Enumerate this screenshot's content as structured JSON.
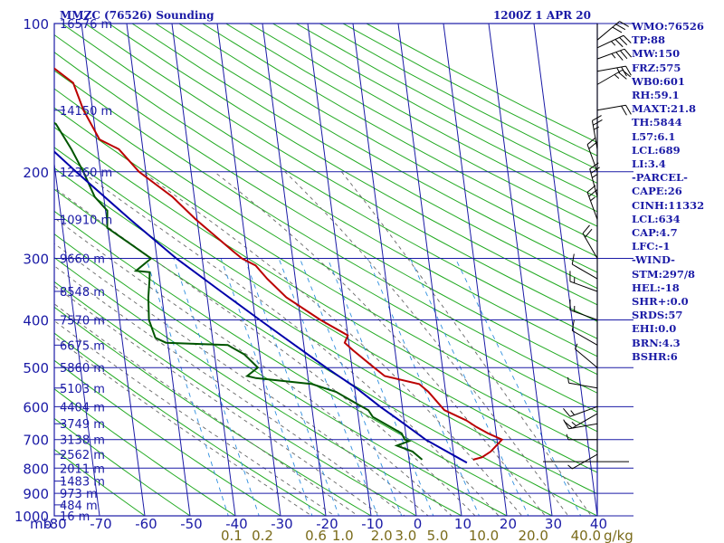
{
  "header": {
    "title": "MMZC (76526) Sounding",
    "time": "1200Z  1 APR 20"
  },
  "indices": [
    "WMO:76526",
    "TP:88",
    "MW:150",
    "FRZ:575",
    "WB0:601",
    "RH:59.1",
    "MAXT:21.8",
    "TH:5844",
    "L57:6.1",
    "LCL:689",
    "LI:3.4",
    "-PARCEL-",
    "CAPE:26",
    "CINH:11332",
    "LCL:634",
    "CAP:4.7",
    "LFC:-1",
    "-WIND-",
    "STM:297/8",
    "HEL:-18",
    "SHR+:0.0",
    "SRDS:57",
    "EHI:0.0",
    "BRN:4.3",
    "BSHR:6"
  ],
  "colors": {
    "frame": "#1a1aa6",
    "dry_adiabat": "#22aa22",
    "moist_adiabat": "#666666",
    "mixing_ratio": "#2f8fdf",
    "temperature": "#bb0000",
    "dewpoint": "#005500",
    "parcel": "#0000aa",
    "wind_barb": "#000000",
    "mixing_ratio_label": "#7a6b1a"
  },
  "chart_data": {
    "type": "line",
    "title": "MMZC (76526) Sounding",
    "xlabel": "",
    "ylabel": "mb",
    "grid": true,
    "xlim": [
      -80,
      40
    ],
    "ylim": [
      1000,
      100
    ],
    "pressure_ticks": [
      100,
      200,
      300,
      400,
      500,
      600,
      700,
      800,
      900,
      1000
    ],
    "pressure_tick_labels": [
      "100",
      "200",
      "300",
      "400",
      "500",
      "600",
      "700",
      "800",
      "900",
      "1000"
    ],
    "temperature_ticks": [
      -80,
      -70,
      -60,
      -50,
      -40,
      -30,
      -20,
      -10,
      0,
      10,
      20,
      30,
      40
    ],
    "temperature_tick_labels": [
      "-80",
      "-70",
      "-60",
      "-50",
      "-40",
      "-30",
      "-20",
      "-10",
      "0",
      "10",
      "20",
      "30",
      "40"
    ],
    "axis_unit_label": "mb",
    "height_labels": [
      {
        "p": 100,
        "label": "16576 m"
      },
      {
        "p": 150,
        "label": "14150 m"
      },
      {
        "p": 200,
        "label": "12360 m"
      },
      {
        "p": 250,
        "label": "10910 m"
      },
      {
        "p": 300,
        "label": "9660 m"
      },
      {
        "p": 350,
        "label": "8548 m"
      },
      {
        "p": 400,
        "label": "7570 m"
      },
      {
        "p": 450,
        "label": "6675 m"
      },
      {
        "p": 500,
        "label": "5860 m"
      },
      {
        "p": 550,
        "label": "5103 m"
      },
      {
        "p": 600,
        "label": "4404 m"
      },
      {
        "p": 650,
        "label": "3749 m"
      },
      {
        "p": 700,
        "label": "3138 m"
      },
      {
        "p": 750,
        "label": "2562 m"
      },
      {
        "p": 800,
        "label": "2011 m"
      },
      {
        "p": 850,
        "label": "1483 m"
      },
      {
        "p": 900,
        "label": "973 m"
      },
      {
        "p": 950,
        "label": "484 m"
      },
      {
        "p": 1000,
        "label": "16 m"
      }
    ],
    "mixing_ratio_lines": [
      0.1,
      0.2,
      0.6,
      1.0,
      2.0,
      3.0,
      5.0,
      10.0,
      20.0,
      40.0
    ],
    "mixing_ratio_labels": [
      "0.1",
      "0.2",
      "0.6",
      "1.0",
      "2.0",
      "3.0",
      "5.0",
      "10.0",
      "20.0",
      "40.0"
    ],
    "mixing_ratio_unit": "g/kg",
    "series": [
      {
        "name": "Temperature",
        "points": [
          [
            769,
            14.2
          ],
          [
            760,
            16.2
          ],
          [
            740,
            18.3
          ],
          [
            700,
            21.1
          ],
          [
            680,
            18.2
          ],
          [
            660,
            15.8
          ],
          [
            640,
            13.8
          ],
          [
            610,
            9.2
          ],
          [
            560,
            6.2
          ],
          [
            540,
            4.4
          ],
          [
            520,
            -3.0
          ],
          [
            500,
            -5.1
          ],
          [
            460,
            -9.4
          ],
          [
            445,
            -10.9
          ],
          [
            430,
            -10.0
          ],
          [
            400,
            -15.6
          ],
          [
            360,
            -22.5
          ],
          [
            330,
            -26.2
          ],
          [
            310,
            -28.4
          ],
          [
            300,
            -31.2
          ],
          [
            290,
            -33.0
          ],
          [
            250,
            -40.3
          ],
          [
            225,
            -44.8
          ],
          [
            200,
            -51.5
          ],
          [
            180,
            -55.3
          ],
          [
            172,
            -59.3
          ],
          [
            150,
            -62.0
          ],
          [
            132,
            -63.5
          ],
          [
            120,
            -68.8
          ],
          [
            112,
            -74.7
          ],
          [
            108,
            -77.0
          ],
          [
            103,
            -77.7
          ],
          [
            100,
            -78.2
          ]
        ]
      },
      {
        "name": "Dewpoint",
        "points": [
          [
            769,
            2.9
          ],
          [
            740,
            1.0
          ],
          [
            720,
            -2.3
          ],
          [
            705,
            0.5
          ],
          [
            700,
            -0.4
          ],
          [
            680,
            -0.9
          ],
          [
            640,
            -5.5
          ],
          [
            630,
            -6.8
          ],
          [
            610,
            -7.6
          ],
          [
            595,
            -9.6
          ],
          [
            560,
            -14.2
          ],
          [
            540,
            -19.3
          ],
          [
            525,
            -31.5
          ],
          [
            520,
            -33.4
          ],
          [
            500,
            -30.8
          ],
          [
            470,
            -33.4
          ],
          [
            450,
            -36.8
          ],
          [
            445,
            -50.4
          ],
          [
            435,
            -52.6
          ],
          [
            400,
            -53.5
          ],
          [
            360,
            -53.0
          ],
          [
            330,
            -52.2
          ],
          [
            320,
            -52.0
          ],
          [
            318,
            -55.0
          ],
          [
            300,
            -51.3
          ],
          [
            280,
            -55.5
          ],
          [
            260,
            -60.1
          ],
          [
            240,
            -59.6
          ],
          [
            225,
            -62.0
          ],
          [
            200,
            -63.8
          ],
          [
            180,
            -65.8
          ],
          [
            160,
            -68.5
          ],
          [
            140,
            -78.2
          ]
        ]
      },
      {
        "name": "Parcel",
        "points": [
          [
            780,
            12.7
          ],
          [
            700,
            4.2
          ],
          [
            640,
            -1.0
          ],
          [
            600,
            -4.9
          ],
          [
            550,
            -9.6
          ],
          [
            500,
            -15.7
          ],
          [
            450,
            -22.0
          ],
          [
            400,
            -29.0
          ],
          [
            350,
            -36.8
          ],
          [
            300,
            -45.7
          ],
          [
            250,
            -54.8
          ],
          [
            200,
            -65.4
          ],
          [
            160,
            -75.5
          ],
          [
            140,
            -81.0
          ]
        ]
      }
    ],
    "wind_barbs": [
      {
        "p": 108,
        "dir": 50,
        "kt": 30
      },
      {
        "p": 112,
        "dir": 65,
        "kt": 35
      },
      {
        "p": 118,
        "dir": 70,
        "kt": 35
      },
      {
        "p": 125,
        "dir": 80,
        "kt": 25
      },
      {
        "p": 133,
        "dir": 60,
        "kt": 25
      },
      {
        "p": 150,
        "dir": 80,
        "kt": 20
      },
      {
        "p": 180,
        "dir": 350,
        "kt": 25
      },
      {
        "p": 200,
        "dir": 340,
        "kt": 20
      },
      {
        "p": 225,
        "dir": 345,
        "kt": 25
      },
      {
        "p": 250,
        "dir": 340,
        "kt": 25
      },
      {
        "p": 300,
        "dir": 330,
        "kt": 20
      },
      {
        "p": 330,
        "dir": 300,
        "kt": 10
      },
      {
        "p": 350,
        "dir": 290,
        "kt": 15
      },
      {
        "p": 400,
        "dir": 290,
        "kt": 15
      },
      {
        "p": 450,
        "dir": 300,
        "kt": 10
      },
      {
        "p": 500,
        "dir": 310,
        "kt": 5
      },
      {
        "p": 550,
        "dir": 280,
        "kt": 5
      },
      {
        "p": 600,
        "dir": 250,
        "kt": 15
      },
      {
        "p": 620,
        "dir": 240,
        "kt": 15
      },
      {
        "p": 650,
        "dir": 260,
        "kt": 10
      },
      {
        "p": 700,
        "dir": 270,
        "kt": 5
      },
      {
        "p": 750,
        "dir": 240,
        "kt": 5
      }
    ],
    "surface_pressure": 776
  }
}
